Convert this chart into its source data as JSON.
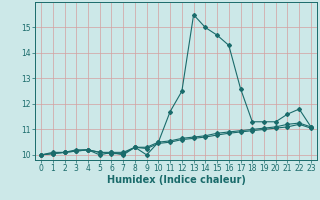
{
  "xlabel": "Humidex (Indice chaleur)",
  "background_color": "#cce8e8",
  "line_color": "#1a6b6b",
  "x_values": [
    0,
    1,
    2,
    3,
    4,
    5,
    6,
    7,
    8,
    9,
    10,
    11,
    12,
    13,
    14,
    15,
    16,
    17,
    18,
    19,
    20,
    21,
    22,
    23
  ],
  "series1": [
    10.0,
    10.1,
    10.1,
    10.2,
    10.2,
    10.0,
    10.1,
    10.0,
    10.3,
    10.0,
    10.5,
    11.7,
    12.5,
    15.5,
    15.0,
    14.7,
    14.3,
    12.6,
    11.3,
    11.3,
    11.3,
    11.6,
    11.8,
    11.1
  ],
  "series2": [
    10.0,
    10.05,
    10.1,
    10.15,
    10.2,
    10.1,
    10.1,
    10.1,
    10.3,
    10.3,
    10.5,
    10.55,
    10.65,
    10.7,
    10.75,
    10.85,
    10.9,
    10.95,
    11.0,
    11.05,
    11.1,
    11.2,
    11.25,
    11.1
  ],
  "series3": [
    10.0,
    10.05,
    10.1,
    10.15,
    10.2,
    10.1,
    10.05,
    10.05,
    10.3,
    10.25,
    10.45,
    10.5,
    10.6,
    10.65,
    10.7,
    10.78,
    10.85,
    10.9,
    10.95,
    11.0,
    11.05,
    11.1,
    11.2,
    11.05
  ],
  "ylim": [
    9.8,
    16.0
  ],
  "xlim": [
    -0.5,
    23.5
  ],
  "yticks": [
    10,
    11,
    12,
    13,
    14,
    15
  ],
  "xticks": [
    0,
    1,
    2,
    3,
    4,
    5,
    6,
    7,
    8,
    9,
    10,
    11,
    12,
    13,
    14,
    15,
    16,
    17,
    18,
    19,
    20,
    21,
    22,
    23
  ],
  "grid_color_v": "#d4a0a0",
  "grid_color_h": "#d4a0a0",
  "tick_fontsize": 5.5,
  "xlabel_fontsize": 7
}
